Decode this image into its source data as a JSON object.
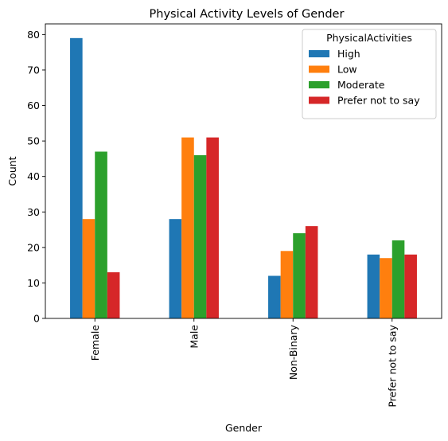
{
  "chart_data": {
    "type": "bar",
    "title": "Physical Activity Levels of Gender",
    "xlabel": "Gender",
    "ylabel": "Count",
    "categories": [
      "Female",
      "Male",
      "Non-Binary",
      "Prefer not to say"
    ],
    "ylim": [
      0,
      83
    ],
    "yticks": [
      0,
      10,
      20,
      30,
      40,
      50,
      60,
      70,
      80
    ],
    "legend": {
      "title": "PhysicalActivities",
      "placement": "top-right"
    },
    "grid": false,
    "series": [
      {
        "name": "High",
        "color": "#1f77b4",
        "values": [
          79,
          28,
          12,
          18
        ]
      },
      {
        "name": "Low",
        "color": "#ff7f0e",
        "values": [
          28,
          51,
          19,
          17
        ]
      },
      {
        "name": "Moderate",
        "color": "#2ca02c",
        "values": [
          47,
          46,
          24,
          22
        ]
      },
      {
        "name": "Prefer not to say",
        "color": "#d62728",
        "values": [
          13,
          51,
          26,
          18
        ]
      }
    ]
  }
}
